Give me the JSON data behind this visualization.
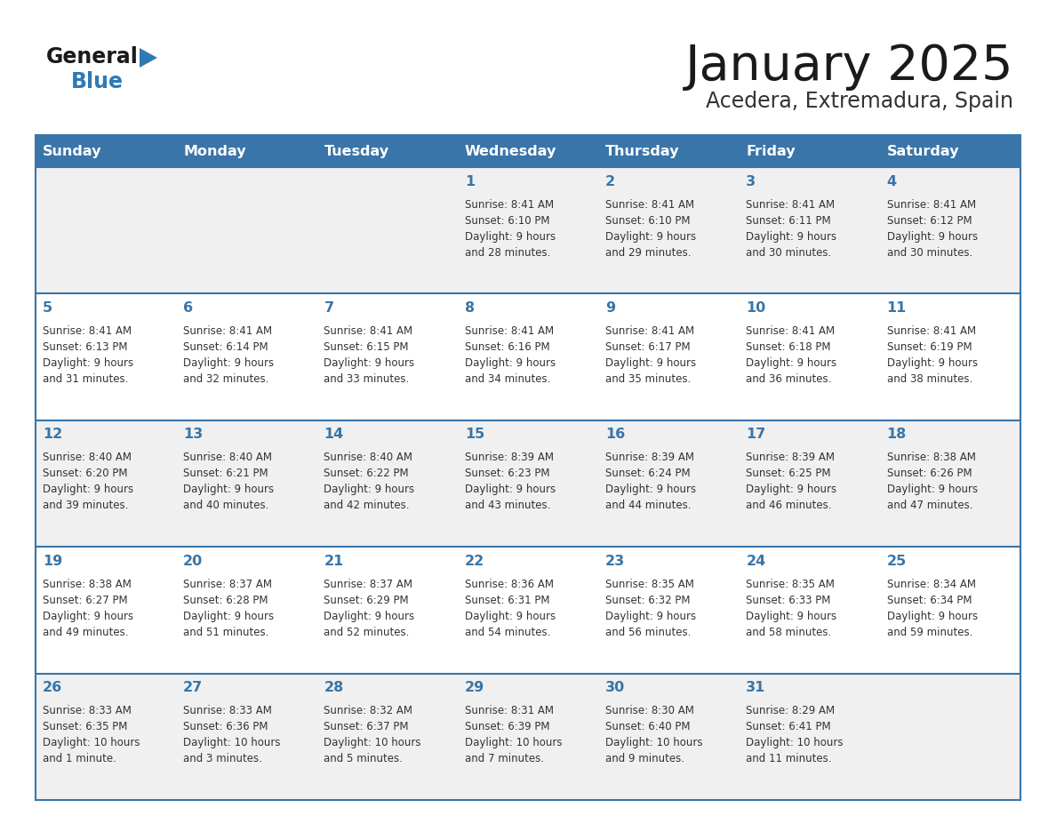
{
  "title": "January 2025",
  "subtitle": "Acedera, Extremadura, Spain",
  "days_of_week": [
    "Sunday",
    "Monday",
    "Tuesday",
    "Wednesday",
    "Thursday",
    "Friday",
    "Saturday"
  ],
  "header_bg": "#3975a8",
  "header_text": "#ffffff",
  "row_bg_even": "#f0f0f0",
  "row_bg_odd": "#ffffff",
  "border_color": "#3975a8",
  "day_num_color": "#3975a8",
  "text_color": "#333333",
  "title_color": "#1a1a1a",
  "subtitle_color": "#333333",
  "logo_general_color": "#1a1a1a",
  "logo_blue_color": "#2e7ab5",
  "logo_triangle_color": "#2e7ab5",
  "calendar_data": [
    [
      {
        "day": null,
        "info": null
      },
      {
        "day": null,
        "info": null
      },
      {
        "day": null,
        "info": null
      },
      {
        "day": 1,
        "info": "Sunrise: 8:41 AM\nSunset: 6:10 PM\nDaylight: 9 hours\nand 28 minutes."
      },
      {
        "day": 2,
        "info": "Sunrise: 8:41 AM\nSunset: 6:10 PM\nDaylight: 9 hours\nand 29 minutes."
      },
      {
        "day": 3,
        "info": "Sunrise: 8:41 AM\nSunset: 6:11 PM\nDaylight: 9 hours\nand 30 minutes."
      },
      {
        "day": 4,
        "info": "Sunrise: 8:41 AM\nSunset: 6:12 PM\nDaylight: 9 hours\nand 30 minutes."
      }
    ],
    [
      {
        "day": 5,
        "info": "Sunrise: 8:41 AM\nSunset: 6:13 PM\nDaylight: 9 hours\nand 31 minutes."
      },
      {
        "day": 6,
        "info": "Sunrise: 8:41 AM\nSunset: 6:14 PM\nDaylight: 9 hours\nand 32 minutes."
      },
      {
        "day": 7,
        "info": "Sunrise: 8:41 AM\nSunset: 6:15 PM\nDaylight: 9 hours\nand 33 minutes."
      },
      {
        "day": 8,
        "info": "Sunrise: 8:41 AM\nSunset: 6:16 PM\nDaylight: 9 hours\nand 34 minutes."
      },
      {
        "day": 9,
        "info": "Sunrise: 8:41 AM\nSunset: 6:17 PM\nDaylight: 9 hours\nand 35 minutes."
      },
      {
        "day": 10,
        "info": "Sunrise: 8:41 AM\nSunset: 6:18 PM\nDaylight: 9 hours\nand 36 minutes."
      },
      {
        "day": 11,
        "info": "Sunrise: 8:41 AM\nSunset: 6:19 PM\nDaylight: 9 hours\nand 38 minutes."
      }
    ],
    [
      {
        "day": 12,
        "info": "Sunrise: 8:40 AM\nSunset: 6:20 PM\nDaylight: 9 hours\nand 39 minutes."
      },
      {
        "day": 13,
        "info": "Sunrise: 8:40 AM\nSunset: 6:21 PM\nDaylight: 9 hours\nand 40 minutes."
      },
      {
        "day": 14,
        "info": "Sunrise: 8:40 AM\nSunset: 6:22 PM\nDaylight: 9 hours\nand 42 minutes."
      },
      {
        "day": 15,
        "info": "Sunrise: 8:39 AM\nSunset: 6:23 PM\nDaylight: 9 hours\nand 43 minutes."
      },
      {
        "day": 16,
        "info": "Sunrise: 8:39 AM\nSunset: 6:24 PM\nDaylight: 9 hours\nand 44 minutes."
      },
      {
        "day": 17,
        "info": "Sunrise: 8:39 AM\nSunset: 6:25 PM\nDaylight: 9 hours\nand 46 minutes."
      },
      {
        "day": 18,
        "info": "Sunrise: 8:38 AM\nSunset: 6:26 PM\nDaylight: 9 hours\nand 47 minutes."
      }
    ],
    [
      {
        "day": 19,
        "info": "Sunrise: 8:38 AM\nSunset: 6:27 PM\nDaylight: 9 hours\nand 49 minutes."
      },
      {
        "day": 20,
        "info": "Sunrise: 8:37 AM\nSunset: 6:28 PM\nDaylight: 9 hours\nand 51 minutes."
      },
      {
        "day": 21,
        "info": "Sunrise: 8:37 AM\nSunset: 6:29 PM\nDaylight: 9 hours\nand 52 minutes."
      },
      {
        "day": 22,
        "info": "Sunrise: 8:36 AM\nSunset: 6:31 PM\nDaylight: 9 hours\nand 54 minutes."
      },
      {
        "day": 23,
        "info": "Sunrise: 8:35 AM\nSunset: 6:32 PM\nDaylight: 9 hours\nand 56 minutes."
      },
      {
        "day": 24,
        "info": "Sunrise: 8:35 AM\nSunset: 6:33 PM\nDaylight: 9 hours\nand 58 minutes."
      },
      {
        "day": 25,
        "info": "Sunrise: 8:34 AM\nSunset: 6:34 PM\nDaylight: 9 hours\nand 59 minutes."
      }
    ],
    [
      {
        "day": 26,
        "info": "Sunrise: 8:33 AM\nSunset: 6:35 PM\nDaylight: 10 hours\nand 1 minute."
      },
      {
        "day": 27,
        "info": "Sunrise: 8:33 AM\nSunset: 6:36 PM\nDaylight: 10 hours\nand 3 minutes."
      },
      {
        "day": 28,
        "info": "Sunrise: 8:32 AM\nSunset: 6:37 PM\nDaylight: 10 hours\nand 5 minutes."
      },
      {
        "day": 29,
        "info": "Sunrise: 8:31 AM\nSunset: 6:39 PM\nDaylight: 10 hours\nand 7 minutes."
      },
      {
        "day": 30,
        "info": "Sunrise: 8:30 AM\nSunset: 6:40 PM\nDaylight: 10 hours\nand 9 minutes."
      },
      {
        "day": 31,
        "info": "Sunrise: 8:29 AM\nSunset: 6:41 PM\nDaylight: 10 hours\nand 11 minutes."
      },
      {
        "day": null,
        "info": null
      }
    ]
  ]
}
